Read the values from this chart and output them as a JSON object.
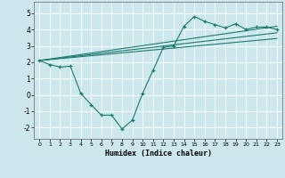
{
  "title": "",
  "xlabel": "Humidex (Indice chaleur)",
  "ylabel": "",
  "bg_color": "#cce8ed",
  "line_color": "#1a7a6e",
  "xlim": [
    -0.5,
    23.5
  ],
  "ylim": [
    -2.7,
    5.7
  ],
  "xticks": [
    0,
    1,
    2,
    3,
    4,
    5,
    6,
    7,
    8,
    9,
    10,
    11,
    12,
    13,
    14,
    15,
    16,
    17,
    18,
    19,
    20,
    21,
    22,
    23
  ],
  "yticks": [
    -2,
    -1,
    0,
    1,
    2,
    3,
    4,
    5
  ],
  "curve1_x": [
    0,
    1,
    2,
    3,
    4,
    5,
    6,
    7,
    8,
    9,
    10,
    11,
    12,
    13,
    14,
    15,
    16,
    17,
    18,
    19,
    20,
    21,
    22,
    23
  ],
  "curve1_y": [
    2.1,
    1.85,
    1.7,
    1.75,
    0.1,
    -0.6,
    -1.25,
    -1.25,
    -2.1,
    -1.55,
    0.1,
    1.5,
    2.9,
    3.0,
    4.2,
    4.8,
    4.5,
    4.3,
    4.1,
    4.35,
    4.0,
    4.15,
    4.15,
    4.0
  ],
  "line1_x": [
    0,
    23
  ],
  "line1_y": [
    2.1,
    4.2
  ],
  "line2_x": [
    0,
    23
  ],
  "line2_y": [
    2.1,
    3.8
  ],
  "line3_x": [
    0,
    23
  ],
  "line3_y": [
    2.1,
    3.45
  ]
}
